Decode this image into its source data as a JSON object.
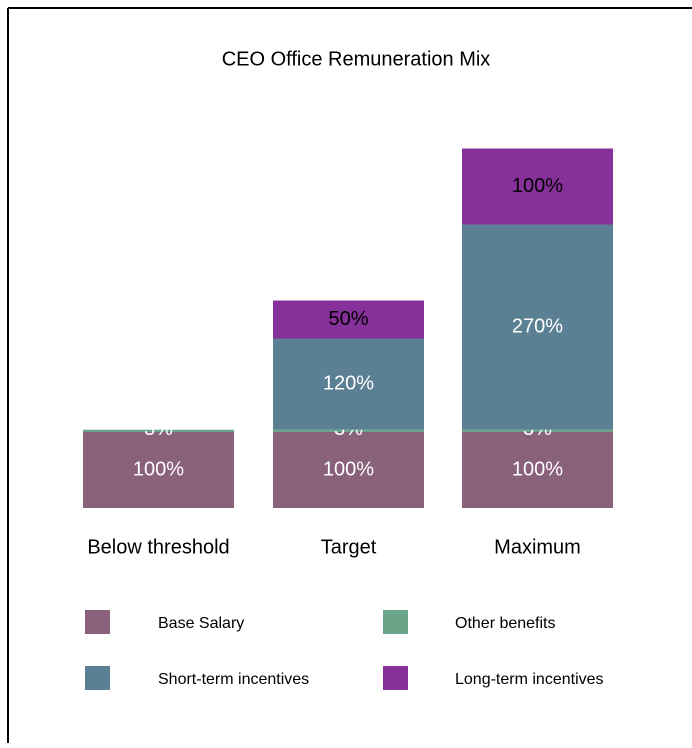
{
  "chart_data": {
    "type": "stacked_bar",
    "title": "CEO Office Remuneration Mix",
    "categories": [
      "Below threshold",
      "Target",
      "Maximum"
    ],
    "series": [
      {
        "name": "Base Salary",
        "color": "#8a617b",
        "values": [
          100,
          100,
          100
        ],
        "value_labels": [
          "100%",
          "100%",
          "100%"
        ]
      },
      {
        "name": "Other benefits",
        "color": "#6aa58a",
        "values": [
          3,
          3,
          3
        ],
        "value_labels": [
          "3%",
          "3%",
          "3%"
        ]
      },
      {
        "name": "Short-term incentives",
        "color": "#5b8093",
        "values": [
          null,
          120,
          270
        ],
        "value_labels": [
          null,
          "120%",
          "270%"
        ]
      },
      {
        "name": "Long-term incentives",
        "color": "#86319a",
        "values": [
          null,
          50,
          100
        ],
        "value_labels": [
          null,
          "50%",
          "100%"
        ]
      }
    ]
  }
}
